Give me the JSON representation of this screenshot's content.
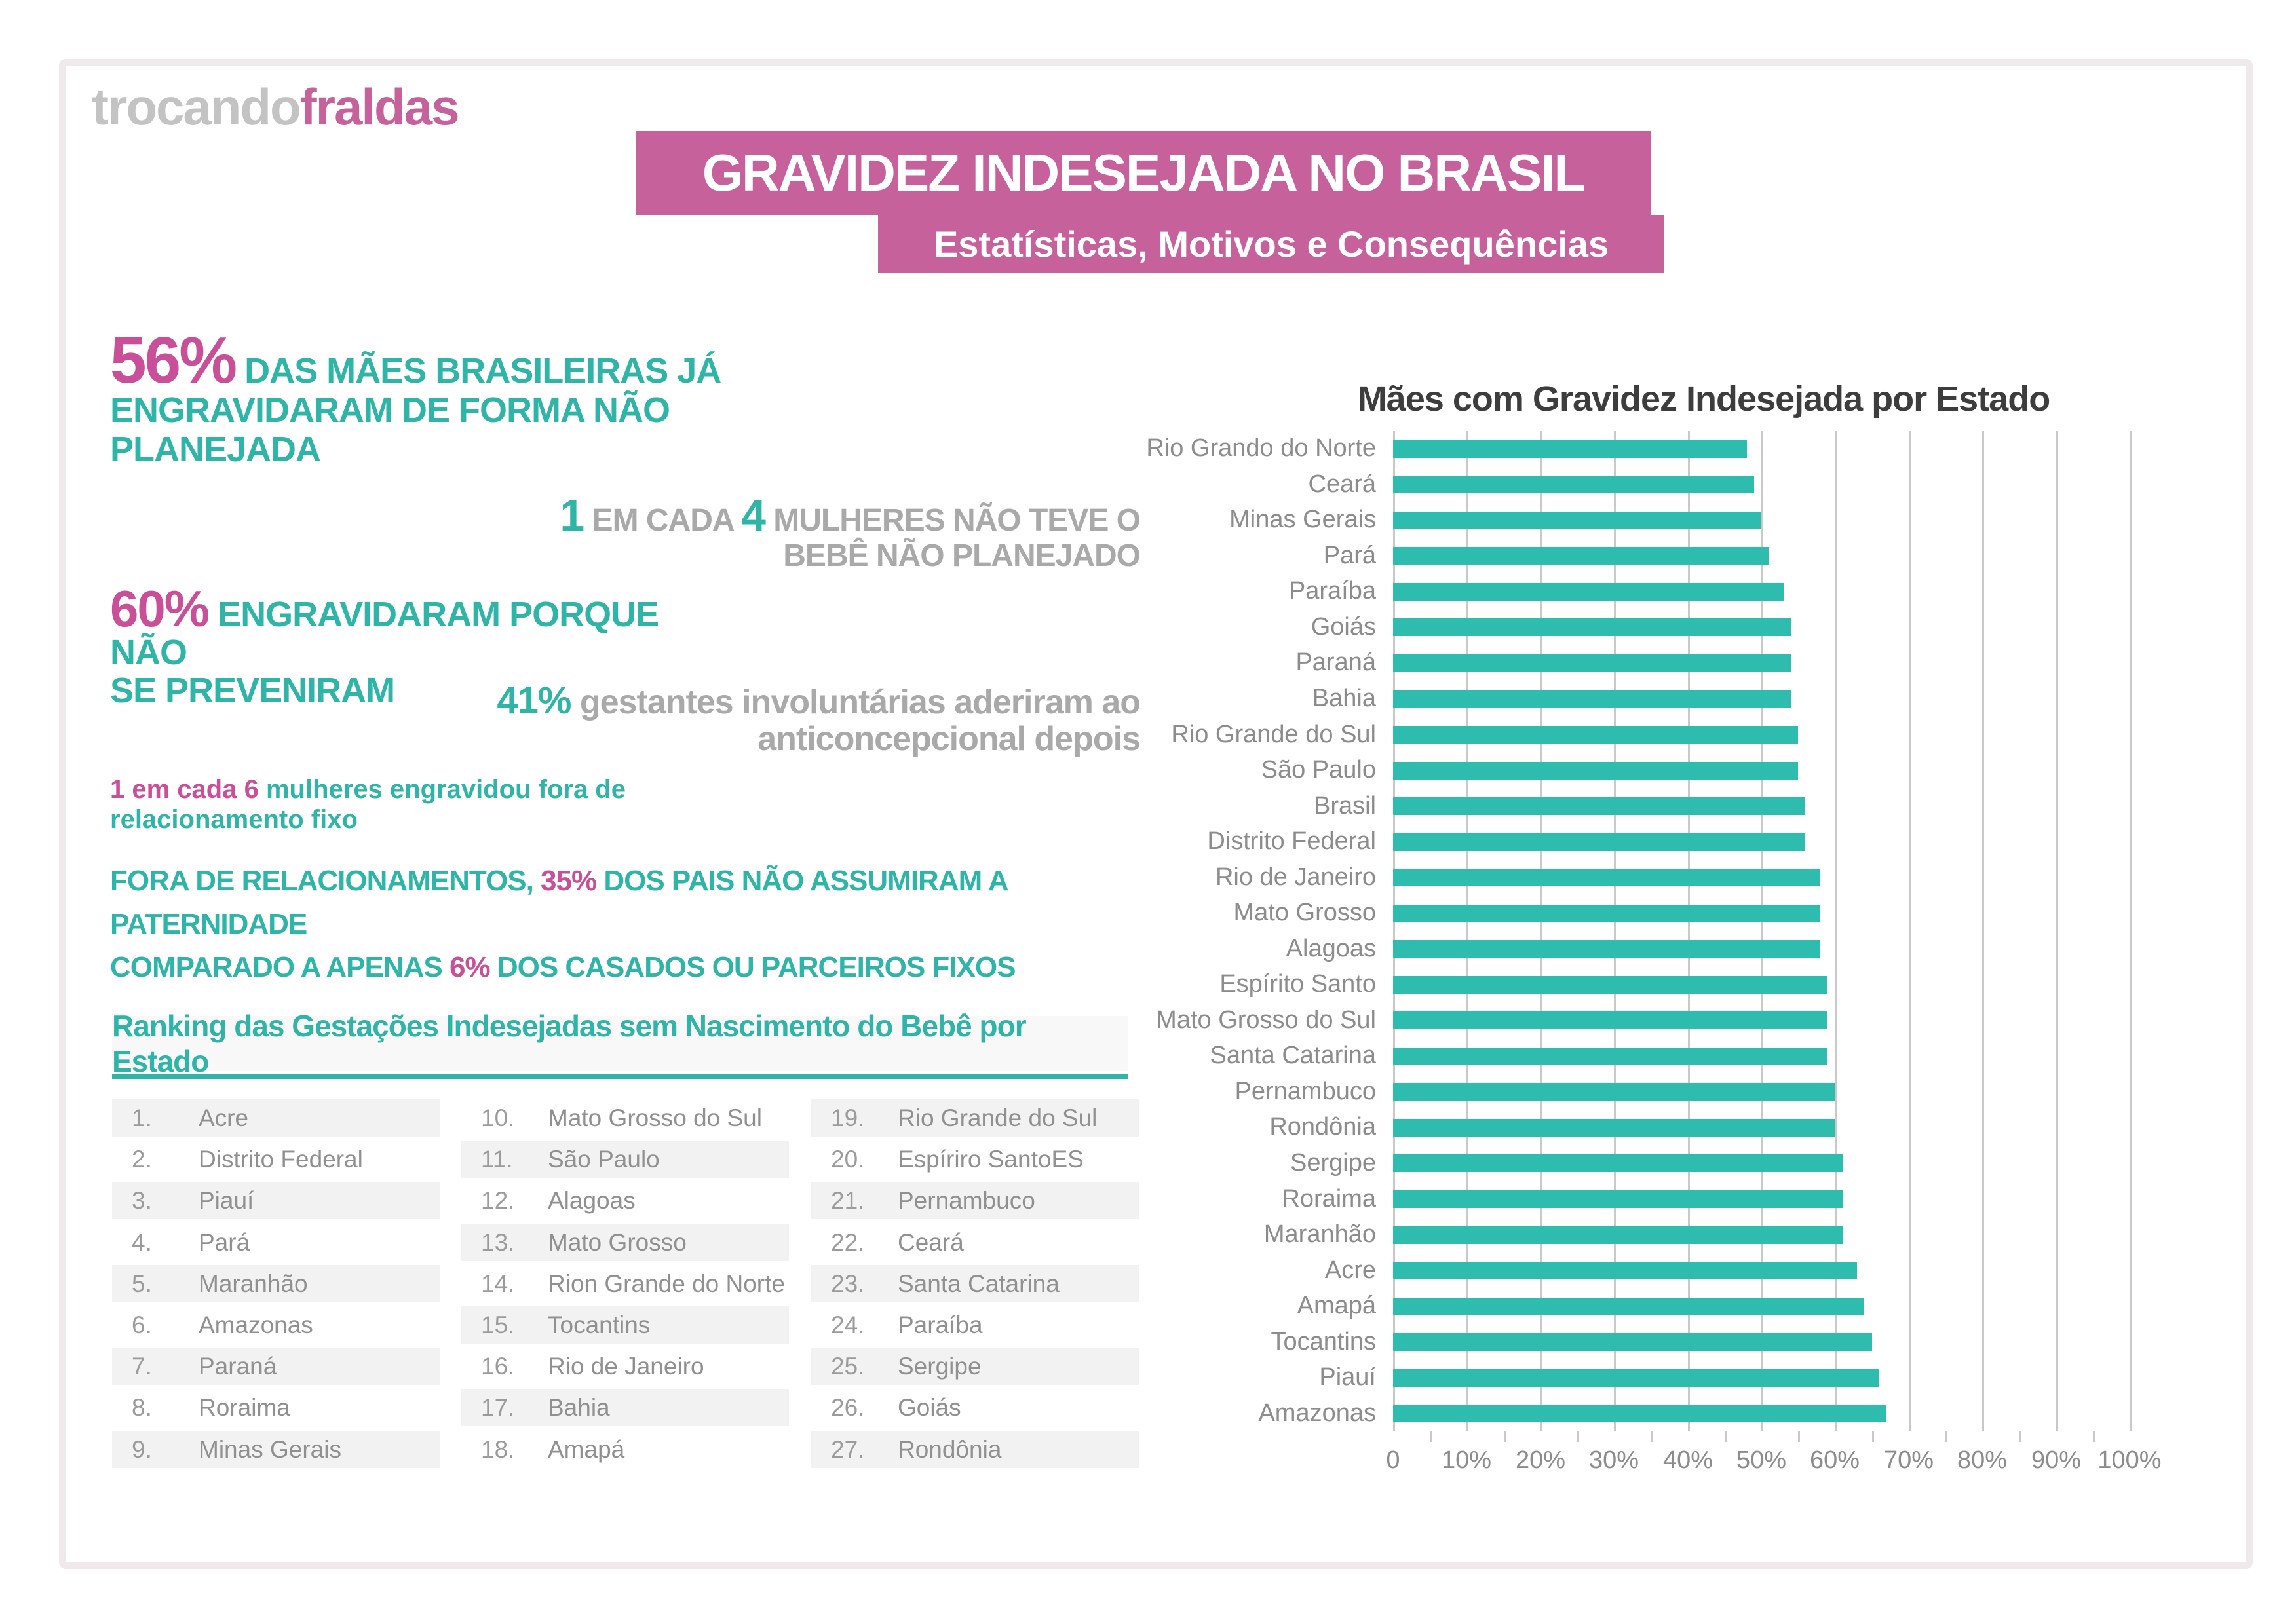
{
  "logo": {
    "part1": "trocando",
    "part2": "fraldas"
  },
  "banner": {
    "title": "GRAVIDEZ INDESEJADA NO BRASIL",
    "subtitle": "Estatísticas, Motivos e Consequências"
  },
  "stats": {
    "stat56": {
      "number": "56%",
      "line1": "DAS MÃES BRASILEIRAS JÁ",
      "line2": "ENGRAVIDARAM DE FORMA NÃO",
      "line3": "PLANEJADA"
    },
    "one_in_four": {
      "num1": "1",
      "mid": "EM CADA",
      "num2": "4",
      "tail": "MULHERES NÃO TEVE O",
      "line2": "BEBÊ NÃO PLANEJADO"
    },
    "stat60": {
      "number": "60%",
      "line1": "ENGRAVIDARAM PORQUE NÃO",
      "line2": "SE PREVENIRAM"
    },
    "stat41": {
      "number": "41%",
      "line1": "gestantes involuntárias aderiram ao",
      "line2": "anticoncepcional depois"
    },
    "one_in_six": {
      "prefix": "1 em cada 6",
      "line1": "mulheres engravidou fora de",
      "line2": "relacionamento fixo"
    },
    "paternity": {
      "part1": "FORA DE RELACIONAMENTOS,",
      "pct1": "35%",
      "part2": "DOS PAIS NÃO ASSUMIRAM A PATERNIDADE",
      "part3": "COMPARADO A APENAS",
      "pct2": "6%",
      "part4": "DOS CASADOS OU PARCEIROS FIXOS"
    }
  },
  "ranking": {
    "title": "Ranking das Gestações Indesejadas sem Nascimento do Bebê por Estado",
    "items": [
      {
        "rank": "1.",
        "name": "Acre"
      },
      {
        "rank": "2.",
        "name": "Distrito Federal"
      },
      {
        "rank": "3.",
        "name": "Piauí"
      },
      {
        "rank": "4.",
        "name": "Pará"
      },
      {
        "rank": "5.",
        "name": "Maranhão"
      },
      {
        "rank": "6.",
        "name": "Amazonas"
      },
      {
        "rank": "7.",
        "name": "Paraná"
      },
      {
        "rank": "8.",
        "name": "Roraima"
      },
      {
        "rank": "9.",
        "name": "Minas Gerais"
      },
      {
        "rank": "10.",
        "name": "Mato Grosso do Sul"
      },
      {
        "rank": "11.",
        "name": "São Paulo"
      },
      {
        "rank": "12.",
        "name": "Alagoas"
      },
      {
        "rank": "13.",
        "name": "Mato Grosso"
      },
      {
        "rank": "14.",
        "name": "Rion Grande do Norte"
      },
      {
        "rank": "15.",
        "name": "Tocantins"
      },
      {
        "rank": "16.",
        "name": "Rio de Janeiro"
      },
      {
        "rank": "17.",
        "name": "Bahia"
      },
      {
        "rank": "18.",
        "name": "Amapá"
      },
      {
        "rank": "19.",
        "name": "Rio Grande do Sul"
      },
      {
        "rank": "20.",
        "name": "Espíriro SantoES"
      },
      {
        "rank": "21.",
        "name": "Pernambuco"
      },
      {
        "rank": "22.",
        "name": "Ceará"
      },
      {
        "rank": "23.",
        "name": "Santa Catarina"
      },
      {
        "rank": "24.",
        "name": "Paraíba"
      },
      {
        "rank": "25.",
        "name": "Sergipe"
      },
      {
        "rank": "26.",
        "name": "Goiás"
      },
      {
        "rank": "27.",
        "name": "Rondônia"
      }
    ]
  },
  "chart_data": {
    "type": "bar",
    "orientation": "horizontal",
    "title": "Mães com Gravidez Indesejada por Estado",
    "categories": [
      "Rio Grando do Norte",
      "Ceará",
      "Minas Gerais",
      "Pará",
      "Paraíba",
      "Goiás",
      "Paraná",
      "Bahia",
      "Rio Grande do Sul",
      "São Paulo",
      "Brasil",
      "Distrito Federal",
      "Rio de Janeiro",
      "Mato Grosso",
      "Alagoas",
      "Espírito Santo",
      "Mato Grosso do Sul",
      "Santa Catarina",
      "Pernambuco",
      "Rondônia",
      "Sergipe",
      "Roraima",
      "Maranhão",
      "Acre",
      "Amapá",
      "Tocantins",
      "Piauí",
      "Amazonas"
    ],
    "values": [
      48,
      49,
      50,
      51,
      53,
      54,
      54,
      54,
      55,
      55,
      56,
      56,
      58,
      58,
      58,
      59,
      59,
      59,
      60,
      60,
      61,
      61,
      61,
      63,
      64,
      65,
      66,
      67
    ],
    "unit": "%",
    "xlabel": "",
    "ylabel": "",
    "xlim": [
      0,
      100
    ],
    "x_tick_labels": [
      "0",
      "10%",
      "20%",
      "30%",
      "40%",
      "50%",
      "60%",
      "70%",
      "80%",
      "90%",
      "100%"
    ],
    "grid": true,
    "bar_color": "#2ebcae"
  },
  "colors": {
    "teal": "#2eb5a7",
    "bar_teal": "#2ebcae",
    "pink_banner": "#c7619c",
    "pink_number": "#c84f98",
    "gray_text": "#a9a9a9",
    "chart_label_gray": "#8c8c8c",
    "row_shade": "#f2f2f2",
    "card_border": "#efe9ec"
  }
}
